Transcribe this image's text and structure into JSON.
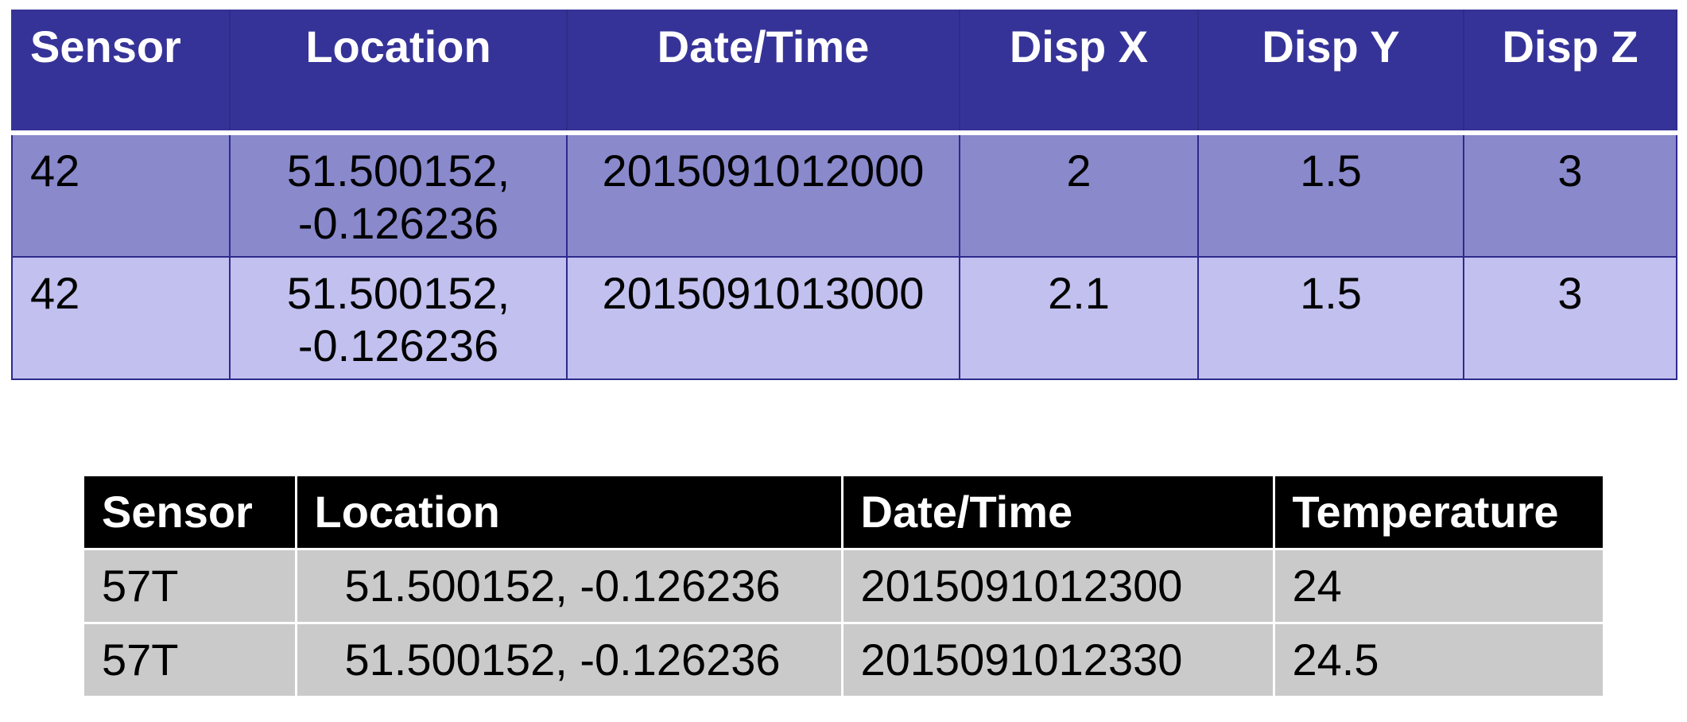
{
  "displacement_table": {
    "headers": [
      "Sensor",
      "Location",
      "Date/Time",
      "Disp X",
      "Disp Y",
      "Disp Z"
    ],
    "rows": [
      {
        "sensor": "42",
        "location_line1": "51.500152,",
        "location_line2": "-0.126236",
        "datetime": "2015091012000",
        "disp_x": "2",
        "disp_y": "1.5",
        "disp_z": "3"
      },
      {
        "sensor": "42",
        "location_line1": "51.500152,",
        "location_line2": "-0.126236",
        "datetime": "2015091013000",
        "disp_x": "2.1",
        "disp_y": "1.5",
        "disp_z": "3"
      }
    ],
    "colors": {
      "header_bg": "#363398",
      "row1_bg": "#8989cc",
      "row2_bg": "#c1c0ee",
      "border": "#2e2a8c"
    }
  },
  "temperature_table": {
    "headers": [
      "Sensor",
      "Location",
      "Date/Time",
      "Temperature"
    ],
    "rows": [
      {
        "sensor": "57T",
        "location": "51.500152, -0.126236",
        "datetime": "2015091012300",
        "temperature": "24"
      },
      {
        "sensor": "57T",
        "location": "51.500152, -0.126236",
        "datetime": "2015091012330",
        "temperature": "24.5"
      }
    ],
    "colors": {
      "header_bg": "#000000",
      "row_bg": "#cacaca"
    }
  }
}
